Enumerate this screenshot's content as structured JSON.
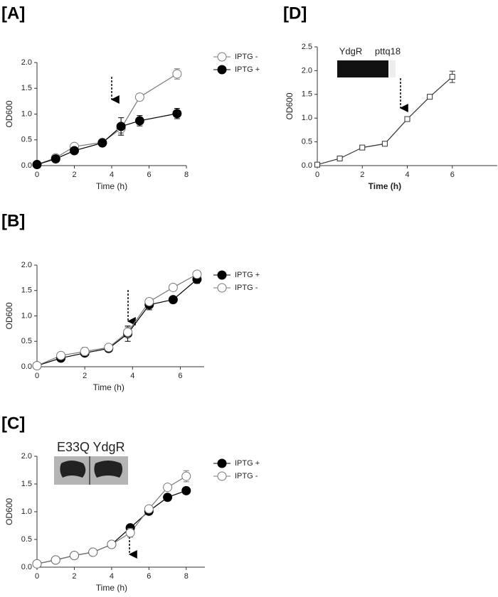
{
  "chart_data": [
    {
      "type": "line",
      "title": "[A]",
      "xlabel": "Time (h)",
      "ylabel": "OD600",
      "x": [
        0,
        1,
        2,
        3.5,
        4.5,
        5.5,
        7.5
      ],
      "series": [
        {
          "name": "IPTG -",
          "color": "#777777",
          "marker": "open-circle",
          "values": [
            0.02,
            0.15,
            0.37,
            0.45,
            0.72,
            1.33,
            1.78
          ],
          "errors": [
            0.01,
            0.03,
            0.03,
            0.03,
            0.1,
            0.07,
            0.1
          ]
        },
        {
          "name": "IPTG +",
          "color": "#000000",
          "marker": "filled-circle",
          "values": [
            0.02,
            0.13,
            0.29,
            0.44,
            0.76,
            0.87,
            1.01
          ],
          "errors": [
            0.01,
            0.03,
            0.03,
            0.03,
            0.17,
            0.1,
            0.1
          ]
        }
      ],
      "xlim": [
        0,
        8
      ],
      "xticks": [
        0,
        2,
        4,
        6,
        8
      ],
      "ylim": [
        0,
        2
      ],
      "yticks": [
        {
          "value": 0,
          "label": "0.0"
        },
        0.5,
        {
          "value": 1,
          "label": "1.0"
        },
        1.5,
        {
          "value": 2,
          "label": "2.0"
        }
      ],
      "legend": "outside-right"
    },
    {
      "type": "line",
      "title": "[B]",
      "xlabel": "Time (h)",
      "ylabel": "OD600",
      "x": [
        0,
        1,
        2,
        3,
        3.8,
        4.7,
        5.7,
        6.7
      ],
      "series": [
        {
          "name": "IPTG +",
          "color": "#000000",
          "marker": "filled-circle",
          "values": [
            0.02,
            0.17,
            0.27,
            0.36,
            0.65,
            1.22,
            1.32,
            1.72
          ],
          "errors": [
            0.01,
            0.05,
            0.06,
            0.05,
            0.15,
            0.1,
            0.05,
            0.08
          ]
        },
        {
          "name": "IPTG -",
          "color": "#777777",
          "marker": "open-circle",
          "values": [
            0.02,
            0.22,
            0.3,
            0.38,
            0.68,
            1.28,
            1.56,
            1.82
          ],
          "errors": [
            0.01,
            0.05,
            0.08,
            0.05,
            0.1,
            0.07,
            0.06,
            0.05
          ]
        }
      ],
      "xlim": [
        0,
        7
      ],
      "xticks": [
        0,
        2,
        4,
        6
      ],
      "ylim": [
        0,
        2
      ],
      "yticks": [
        {
          "value": 0,
          "label": "0.0"
        },
        0.5,
        {
          "value": 1,
          "label": "1.0"
        },
        1.5,
        {
          "value": 2,
          "label": "2.0"
        }
      ],
      "legend": "outside-right"
    },
    {
      "type": "line",
      "title": "[C]",
      "xlabel": "Time (h)",
      "ylabel": "OD600",
      "x": [
        0,
        1,
        2,
        3,
        4,
        5,
        6,
        7,
        8
      ],
      "series": [
        {
          "name": "IPTG +",
          "color": "#000000",
          "marker": "filled-circle",
          "values": [
            0.06,
            0.13,
            0.21,
            0.27,
            0.41,
            0.71,
            1.01,
            1.26,
            1.38
          ],
          "errors": [
            0.01,
            0.01,
            0.01,
            0.01,
            0.02,
            0.05,
            0.04,
            0.05,
            0.06
          ]
        },
        {
          "name": "IPTG -",
          "color": "#777777",
          "marker": "open-circle",
          "values": [
            0.06,
            0.13,
            0.21,
            0.27,
            0.41,
            0.62,
            1.05,
            1.44,
            1.64
          ],
          "errors": [
            0.01,
            0.01,
            0.01,
            0.01,
            0.02,
            0.08,
            0.04,
            0.06,
            0.1
          ]
        }
      ],
      "xlim": [
        0,
        9
      ],
      "xticks": [
        0,
        2,
        4,
        6,
        8
      ],
      "ylim": [
        0,
        2
      ],
      "yticks": [
        {
          "value": 0,
          "label": "0.0"
        },
        0.5,
        {
          "value": 1,
          "label": "1.0"
        },
        1.5,
        {
          "value": 2,
          "label": "2.0"
        }
      ],
      "inset_labels": [
        "E33Q",
        "YdgR"
      ],
      "legend": "outside-right"
    },
    {
      "type": "line",
      "title": "[D]",
      "xlabel": "Time (h)",
      "ylabel": "OD600",
      "x": [
        0,
        1,
        2,
        3,
        4,
        5,
        6
      ],
      "series": [
        {
          "color": "#333333",
          "marker": "open-square",
          "values": [
            0.02,
            0.15,
            0.38,
            0.46,
            0.98,
            1.45,
            1.87
          ],
          "errors": [
            0.01,
            0.02,
            0.02,
            0.02,
            0.03,
            0.03,
            0.12
          ]
        }
      ],
      "xlim": [
        0,
        8
      ],
      "xticks": [
        0,
        2,
        4,
        6
      ],
      "ylim": [
        0,
        2.5
      ],
      "yticks": [
        {
          "value": 0,
          "label": "0.0"
        },
        0.5,
        {
          "value": 1,
          "label": "1.0"
        },
        1.5,
        {
          "value": 2,
          "label": "2.0"
        },
        2.5
      ],
      "inset_labels": [
        "YdgR",
        "pttq18"
      ]
    }
  ]
}
